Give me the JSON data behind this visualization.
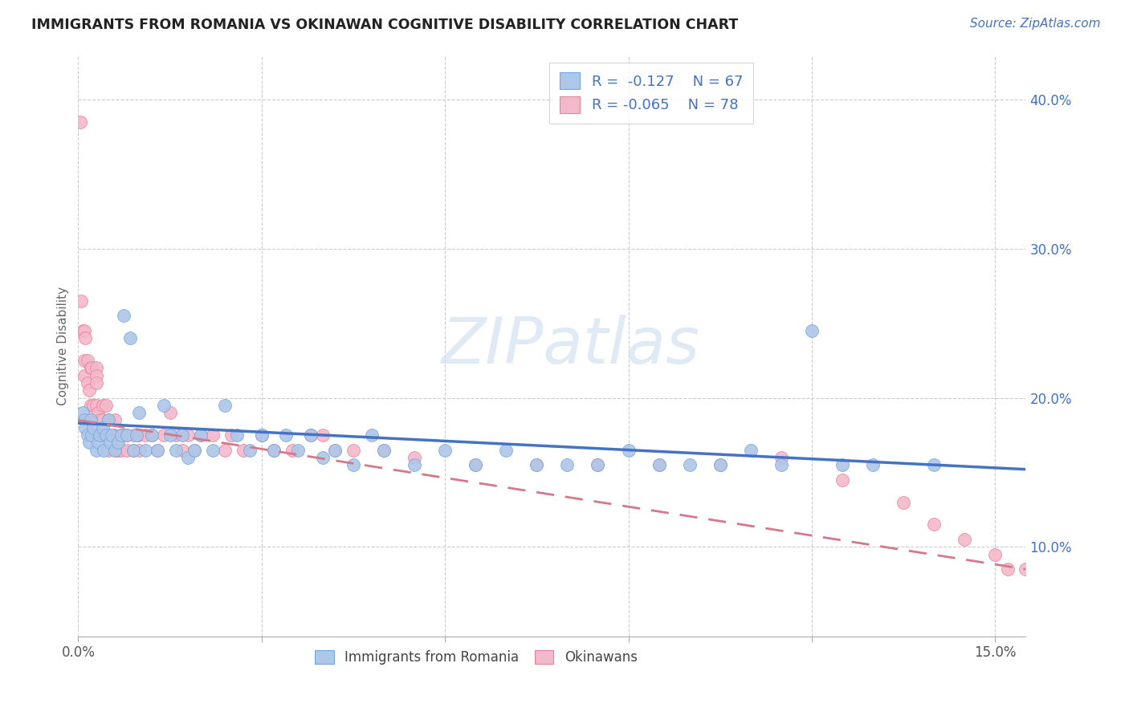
{
  "title": "IMMIGRANTS FROM ROMANIA VS OKINAWAN COGNITIVE DISABILITY CORRELATION CHART",
  "source": "Source: ZipAtlas.com",
  "ylabel": "Cognitive Disability",
  "xlim": [
    0.0,
    0.155
  ],
  "ylim": [
    0.04,
    0.43
  ],
  "x_ticks": [
    0.0,
    0.15
  ],
  "x_tick_labels": [
    "0.0%",
    "15.0%"
  ],
  "y_ticks_right": [
    0.1,
    0.2,
    0.3,
    0.4
  ],
  "blue_color": "#aec6e8",
  "pink_color": "#f4b8cb",
  "blue_edge_color": "#6fa8dc",
  "pink_edge_color": "#e8829a",
  "blue_line_color": "#4472c4",
  "pink_line_color": "#d4788a",
  "watermark_color": "#ccdcef",
  "romania_x": [
    0.0008,
    0.001,
    0.0012,
    0.0015,
    0.0018,
    0.002,
    0.0022,
    0.0025,
    0.003,
    0.0032,
    0.0035,
    0.004,
    0.0042,
    0.0045,
    0.005,
    0.0052,
    0.0055,
    0.006,
    0.0065,
    0.007,
    0.0075,
    0.008,
    0.0085,
    0.009,
    0.0095,
    0.01,
    0.011,
    0.012,
    0.013,
    0.014,
    0.015,
    0.016,
    0.017,
    0.018,
    0.019,
    0.02,
    0.022,
    0.024,
    0.026,
    0.028,
    0.03,
    0.032,
    0.034,
    0.036,
    0.038,
    0.04,
    0.042,
    0.045,
    0.048,
    0.05,
    0.055,
    0.06,
    0.065,
    0.07,
    0.075,
    0.08,
    0.085,
    0.09,
    0.095,
    0.1,
    0.105,
    0.11,
    0.115,
    0.12,
    0.125,
    0.13,
    0.14
  ],
  "romania_y": [
    0.19,
    0.185,
    0.18,
    0.175,
    0.17,
    0.185,
    0.175,
    0.18,
    0.165,
    0.17,
    0.175,
    0.18,
    0.165,
    0.175,
    0.185,
    0.17,
    0.175,
    0.165,
    0.17,
    0.175,
    0.255,
    0.175,
    0.24,
    0.165,
    0.175,
    0.19,
    0.165,
    0.175,
    0.165,
    0.195,
    0.175,
    0.165,
    0.175,
    0.16,
    0.165,
    0.175,
    0.165,
    0.195,
    0.175,
    0.165,
    0.175,
    0.165,
    0.175,
    0.165,
    0.175,
    0.16,
    0.165,
    0.155,
    0.175,
    0.165,
    0.155,
    0.165,
    0.155,
    0.165,
    0.155,
    0.155,
    0.155,
    0.165,
    0.155,
    0.155,
    0.155,
    0.165,
    0.155,
    0.245,
    0.155,
    0.155,
    0.155
  ],
  "okinawa_x": [
    0.0003,
    0.0005,
    0.0008,
    0.001,
    0.001,
    0.001,
    0.0012,
    0.0015,
    0.0015,
    0.0018,
    0.002,
    0.002,
    0.002,
    0.0022,
    0.0025,
    0.0025,
    0.003,
    0.003,
    0.003,
    0.003,
    0.0032,
    0.0035,
    0.004,
    0.004,
    0.004,
    0.0045,
    0.005,
    0.005,
    0.005,
    0.006,
    0.006,
    0.006,
    0.0065,
    0.007,
    0.007,
    0.0075,
    0.008,
    0.008,
    0.009,
    0.009,
    0.01,
    0.01,
    0.011,
    0.012,
    0.013,
    0.014,
    0.015,
    0.016,
    0.017,
    0.018,
    0.019,
    0.02,
    0.022,
    0.024,
    0.025,
    0.027,
    0.03,
    0.032,
    0.035,
    0.038,
    0.04,
    0.042,
    0.045,
    0.05,
    0.055,
    0.065,
    0.075,
    0.085,
    0.095,
    0.105,
    0.115,
    0.125,
    0.135,
    0.14,
    0.145,
    0.15,
    0.152,
    0.155
  ],
  "okinawa_y": [
    0.385,
    0.265,
    0.245,
    0.245,
    0.225,
    0.215,
    0.24,
    0.225,
    0.21,
    0.205,
    0.22,
    0.195,
    0.185,
    0.22,
    0.195,
    0.175,
    0.22,
    0.215,
    0.21,
    0.195,
    0.19,
    0.185,
    0.195,
    0.185,
    0.175,
    0.195,
    0.185,
    0.175,
    0.165,
    0.185,
    0.175,
    0.165,
    0.165,
    0.175,
    0.165,
    0.175,
    0.165,
    0.175,
    0.175,
    0.165,
    0.175,
    0.165,
    0.175,
    0.175,
    0.165,
    0.175,
    0.19,
    0.175,
    0.165,
    0.175,
    0.165,
    0.175,
    0.175,
    0.165,
    0.175,
    0.165,
    0.175,
    0.165,
    0.165,
    0.175,
    0.175,
    0.165,
    0.165,
    0.165,
    0.16,
    0.155,
    0.155,
    0.155,
    0.155,
    0.155,
    0.16,
    0.145,
    0.13,
    0.115,
    0.105,
    0.095,
    0.085,
    0.085
  ]
}
